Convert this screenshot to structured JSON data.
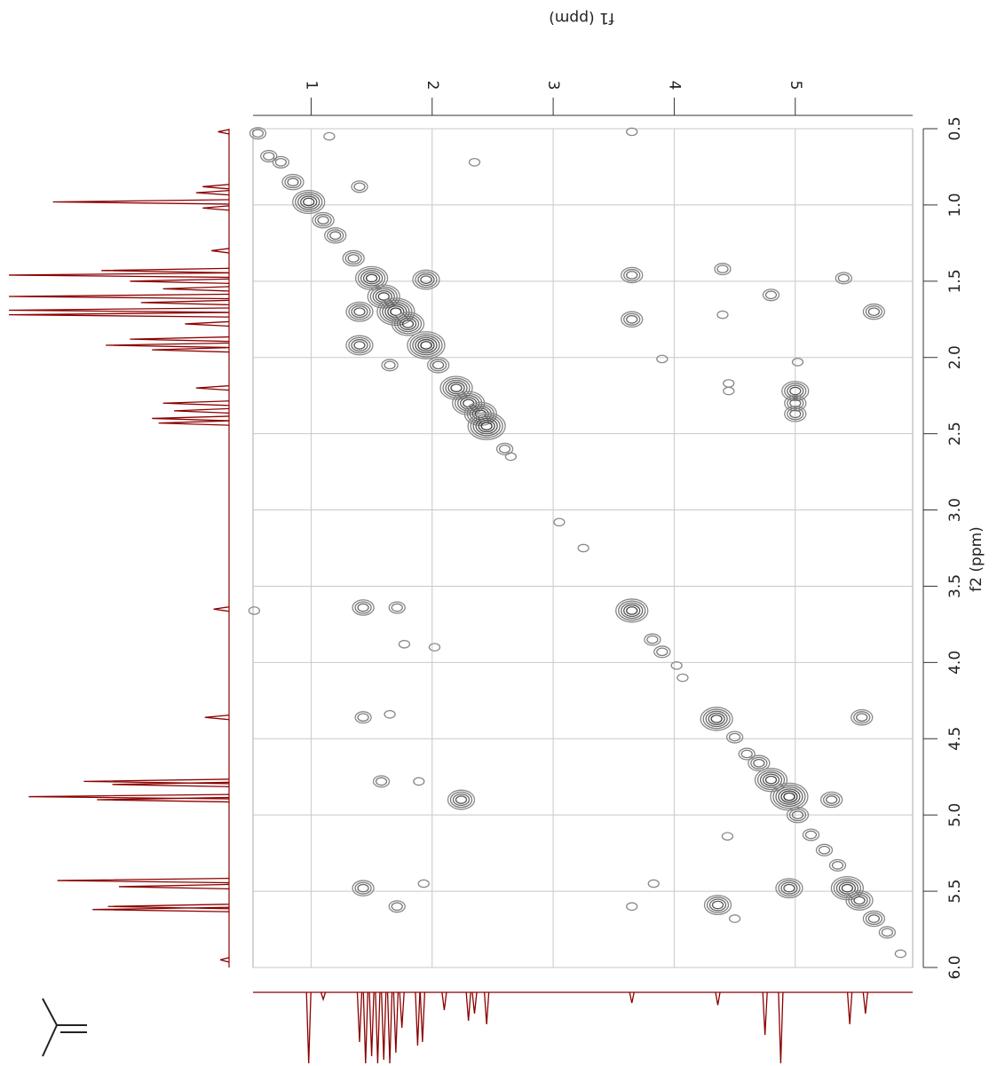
{
  "chart_data": {
    "type": "cosy",
    "x_label": "f1 (ppm)",
    "y_label": "f2 (ppm)",
    "xlim": [
      0.52,
      5.97
    ],
    "ylim": [
      0.5,
      6.0
    ],
    "xticks": [
      1,
      2,
      3,
      4,
      5
    ],
    "yticks": [
      0.5,
      {
        "value": 1,
        "label": "1.0"
      },
      1.5,
      {
        "value": 2,
        "label": "2.0"
      },
      2.5,
      {
        "value": 3,
        "label": "3.0"
      },
      3.5,
      {
        "value": 4,
        "label": "4.0"
      },
      4.5,
      {
        "value": 5,
        "label": "5.0"
      },
      5.5,
      {
        "value": 6,
        "label": "6.0"
      }
    ],
    "grid": true,
    "contour_color": "#555555",
    "peaks": {
      "f1": [
        0.56,
        0.65,
        0.75,
        0.85,
        0.98,
        1.1,
        1.2,
        1.35,
        1.5,
        1.6,
        1.7,
        1.8,
        1.95,
        2.05,
        2.2,
        2.3,
        2.4,
        2.45,
        2.6,
        2.65,
        1.4,
        1.95,
        1.4,
        1.4,
        1.65,
        2.35,
        1.15,
        3.65,
        3.65,
        3.65,
        4.4,
        4.4,
        3.9,
        4.45,
        4.45,
        4.8,
        5.0,
        5.0,
        5.0,
        5.02,
        5.4,
        5.65,
        3.05,
        3.25,
        3.65,
        3.82,
        3.9,
        4.02,
        4.07,
        4.35,
        4.5,
        4.6,
        4.7,
        4.8,
        4.95,
        5.02,
        5.13,
        5.24,
        5.35,
        5.43,
        5.53,
        5.65,
        5.76,
        5.87,
        1.43,
        1.43,
        1.43,
        1.71,
        1.58,
        1.65,
        1.89,
        2.24,
        1.71,
        1.93,
        1.77,
        2.02,
        3.65,
        3.83,
        4.36,
        4.5,
        4.44,
        4.95,
        5.3,
        5.55,
        0.53
      ],
      "f2": [
        0.53,
        0.68,
        0.72,
        0.85,
        0.98,
        1.1,
        1.2,
        1.35,
        1.48,
        1.6,
        1.7,
        1.78,
        1.92,
        2.05,
        2.2,
        2.3,
        2.37,
        2.45,
        2.6,
        2.65,
        0.88,
        1.49,
        1.7,
        1.92,
        2.05,
        0.72,
        0.55,
        0.52,
        1.46,
        1.75,
        1.42,
        1.72,
        2.01,
        2.17,
        2.22,
        1.59,
        2.22,
        2.3,
        2.37,
        2.03,
        1.48,
        1.7,
        3.08,
        3.25,
        3.66,
        3.85,
        3.93,
        4.02,
        4.1,
        4.37,
        4.49,
        4.6,
        4.66,
        4.77,
        4.88,
        5.0,
        5.13,
        5.23,
        5.33,
        5.48,
        5.56,
        5.68,
        5.77,
        5.91,
        3.64,
        4.36,
        5.48,
        3.64,
        4.78,
        4.34,
        4.78,
        4.9,
        5.6,
        5.45,
        3.88,
        3.9,
        5.6,
        5.45,
        5.59,
        5.68,
        5.14,
        5.48,
        4.9,
        4.36,
        3.66
      ],
      "levels": [
        2,
        2,
        2,
        3,
        5,
        3,
        3,
        3,
        5,
        5,
        6,
        5,
        6,
        3,
        5,
        5,
        5,
        6,
        2,
        1,
        2,
        4,
        4,
        4,
        2,
        1,
        1,
        1,
        3,
        3,
        2,
        1,
        1,
        1,
        1,
        2,
        4,
        3,
        3,
        1,
        2,
        3,
        1,
        1,
        5,
        2,
        2,
        1,
        1,
        5,
        2,
        2,
        3,
        5,
        6,
        3,
        2,
        2,
        2,
        5,
        4,
        3,
        2,
        1,
        3,
        2,
        3,
        2,
        2,
        1,
        1,
        4,
        2,
        1,
        1,
        1,
        1,
        1,
        4,
        1,
        1,
        4,
        3,
        3,
        1
      ]
    },
    "f2_projection": {
      "color": "#8b0000",
      "ppm": [
        0.52,
        0.88,
        0.92,
        0.98,
        1.02,
        1.3,
        1.43,
        1.46,
        1.5,
        1.55,
        1.6,
        1.64,
        1.69,
        1.72,
        1.78,
        1.88,
        1.92,
        1.95,
        2.2,
        2.3,
        2.35,
        2.4,
        2.43,
        3.65,
        4.36,
        4.78,
        4.8,
        4.88,
        4.9,
        5.43,
        5.47,
        5.6,
        5.62,
        5.95
      ],
      "height": [
        5,
        12,
        15,
        80,
        12,
        8,
        58,
        100,
        45,
        30,
        100,
        40,
        100,
        100,
        20,
        45,
        56,
        35,
        15,
        30,
        25,
        35,
        32,
        7,
        11,
        66,
        53,
        91,
        60,
        78,
        50,
        55,
        62,
        4
      ]
    },
    "f1_projection": {
      "color": "#8b0000",
      "ppm": [
        0.98,
        1.1,
        1.4,
        1.45,
        1.5,
        1.55,
        1.6,
        1.65,
        1.7,
        1.75,
        1.88,
        1.92,
        2.1,
        2.3,
        2.35,
        2.45,
        3.65,
        4.36,
        4.75,
        4.88,
        5.45,
        5.58
      ],
      "height": [
        100,
        10,
        70,
        100,
        90,
        100,
        95,
        100,
        85,
        50,
        75,
        70,
        25,
        40,
        30,
        45,
        15,
        18,
        60,
        100,
        45,
        30
      ]
    }
  }
}
